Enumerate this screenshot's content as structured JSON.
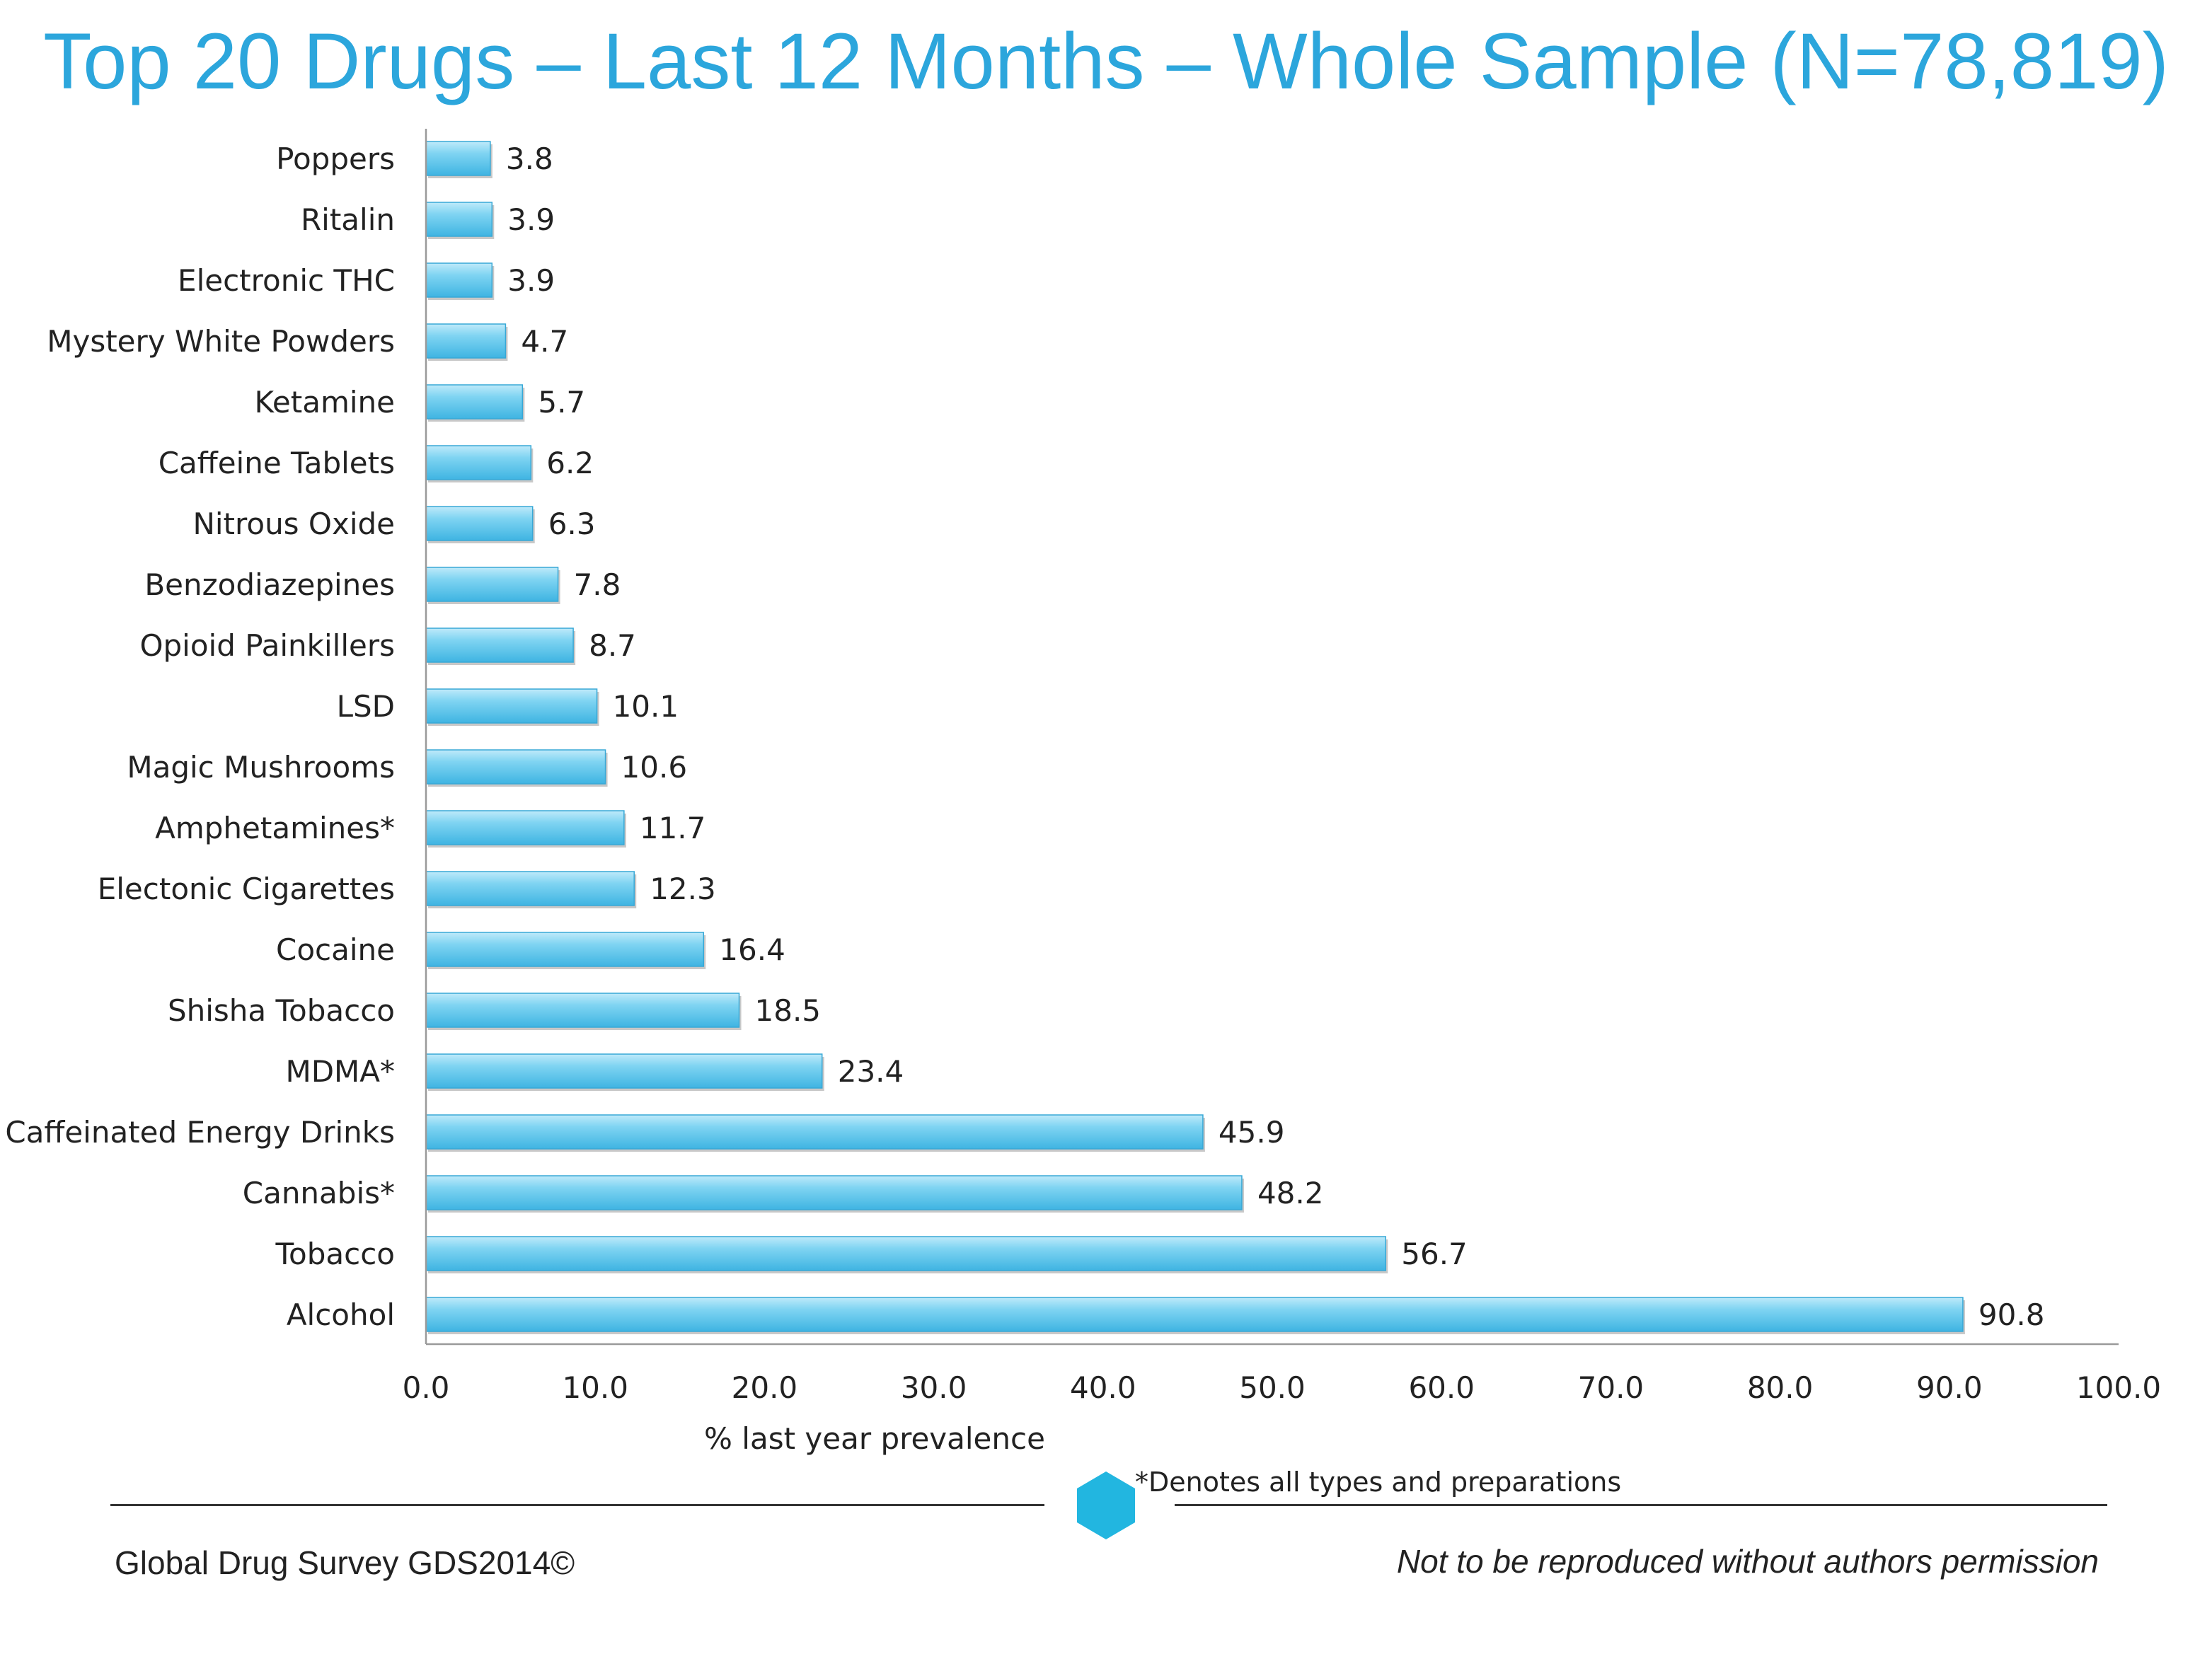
{
  "title": "Top 20 Drugs – Last 12 Months – Whole Sample (N=78,819)",
  "footer": {
    "left": "Global Drug Survey GDS2014©",
    "right": "Not to be reproduced without authors permission",
    "footnote": "*Denotes all types and preparations"
  },
  "colors": {
    "title": "#2ca6dc",
    "bar": "#5cc6ec",
    "bar_light": "#bfeafa",
    "hexagon": "#22b6e0"
  },
  "chart_data": {
    "type": "bar",
    "orientation": "horizontal",
    "categories": [
      "Poppers",
      "Ritalin",
      "Electronic THC",
      "Mystery White Powders",
      "Ketamine",
      "Caffeine Tablets",
      "Nitrous Oxide",
      "Benzodiazepines",
      "Opioid Painkillers",
      "LSD",
      "Magic Mushrooms",
      "Amphetamines*",
      "Electonic Cigarettes",
      "Cocaine",
      "Shisha Tobacco",
      "MDMA*",
      "Caffeinated Energy Drinks",
      "Cannabis*",
      "Tobacco",
      "Alcohol"
    ],
    "values": [
      3.8,
      3.9,
      3.9,
      4.7,
      5.7,
      6.2,
      6.3,
      7.8,
      8.7,
      10.1,
      10.6,
      11.7,
      12.3,
      16.4,
      18.5,
      23.4,
      45.9,
      48.2,
      56.7,
      90.8
    ],
    "value_labels": [
      "3.8",
      "3.9",
      "3.9",
      "4.7",
      "5.7",
      "6.2",
      "6.3",
      "7.8",
      "8.7",
      "10.1",
      "10.6",
      "11.7",
      "12.3",
      "16.4",
      "18.5",
      "23.4",
      "45.9",
      "48.2",
      "56.7",
      "90.8"
    ],
    "xlabel": "% last year prevalence",
    "ylabel": "",
    "xlim": [
      0,
      100
    ],
    "xticks": [
      0,
      10,
      20,
      30,
      40,
      50,
      60,
      70,
      80,
      90,
      100
    ],
    "xtick_labels": [
      "0.0",
      "10.0",
      "20.0",
      "30.0",
      "40.0",
      "50.0",
      "60.0",
      "70.0",
      "80.0",
      "90.0",
      "100.0"
    ],
    "grid": false,
    "legend": "none"
  }
}
